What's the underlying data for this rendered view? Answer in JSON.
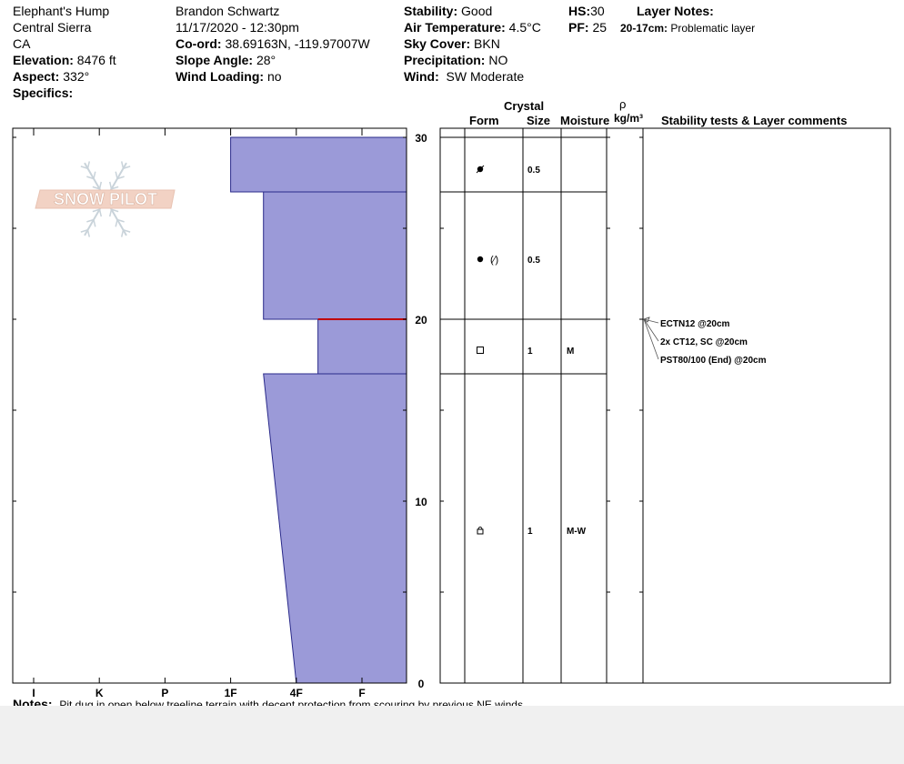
{
  "header": {
    "location": "Elephant's Hump",
    "range": "Central Sierra",
    "state": "CA",
    "elevation_label": "Elevation:",
    "elevation_value": "8476 ft",
    "aspect_label": "Aspect:",
    "aspect_value": "332°",
    "specifics_label": "Specifics:",
    "observer": "Brandon Schwartz",
    "datetime": "11/17/2020 - 12:30pm",
    "coord_label": "Co-ord:",
    "coord_value": "38.69163N, -119.97007W",
    "slope_label": "Slope Angle:",
    "slope_value": "28°",
    "windload_label": "Wind Loading:",
    "windload_value": "no",
    "stability_label": "Stability:",
    "stability_value": "Good",
    "airtemp_label": "Air Temperature:",
    "airtemp_value": "4.5°C",
    "sky_label": "Sky Cover:",
    "sky_value": "BKN",
    "precip_label": "Precipitation:",
    "precip_value": "NO",
    "wind_label": "Wind:",
    "wind_value": "SW Moderate",
    "hs_label": "HS:",
    "hs_value": "30",
    "pf_label": "PF:",
    "pf_value": "25",
    "layer_notes_label": "Layer Notes:",
    "layer_note_range": "20-17cm:",
    "layer_note_text": "Problematic layer"
  },
  "logo_text": "SNOW PILOT",
  "columns": {
    "crystal": "Crystal",
    "form": "Form",
    "size": "Size",
    "moisture": "Moisture",
    "rho": "ρ",
    "density_unit": "kg/m³",
    "stability": "Stability tests & Layer comments"
  },
  "notes": {
    "label": "Notes:",
    "text": "Pit dug in open below treeline terrain with decent protection from scouring by previous NE winds"
  },
  "chart_data": {
    "type": "snow-profile",
    "hardness_scale": [
      "I",
      "K",
      "P",
      "1F",
      "4F",
      "F"
    ],
    "depth_ticks": [
      0,
      10,
      20,
      30
    ],
    "ylim": [
      0,
      30.5
    ],
    "layers": [
      {
        "top": 30,
        "bottom": 27,
        "hardness_top": "1F",
        "hardness_bottom": "1F",
        "form": "precipitation particles (rimed)",
        "size": "0.5",
        "moisture": ""
      },
      {
        "top": 27,
        "bottom": 20,
        "hardness_top": "1F-/4F",
        "hardness_bottom": "1F-/4F",
        "form": "rounds (faceting)",
        "size": "0.5",
        "moisture": ""
      },
      {
        "top": 20,
        "bottom": 17,
        "hardness_top": "4F+",
        "hardness_bottom": "4F+",
        "form": "faceted crystals",
        "size": "1",
        "moisture": "M"
      },
      {
        "top": 17,
        "bottom": 0,
        "hardness_top": "1F-/4F",
        "hardness_bottom": "4F",
        "form": "melt forms",
        "size": "1",
        "moisture": "M-W"
      }
    ],
    "problem_interface_depth": 20,
    "stability_tests": [
      "ECTN12 @20cm",
      "2x CT12, SC @20cm",
      "PST80/100 (End) @20cm"
    ]
  }
}
